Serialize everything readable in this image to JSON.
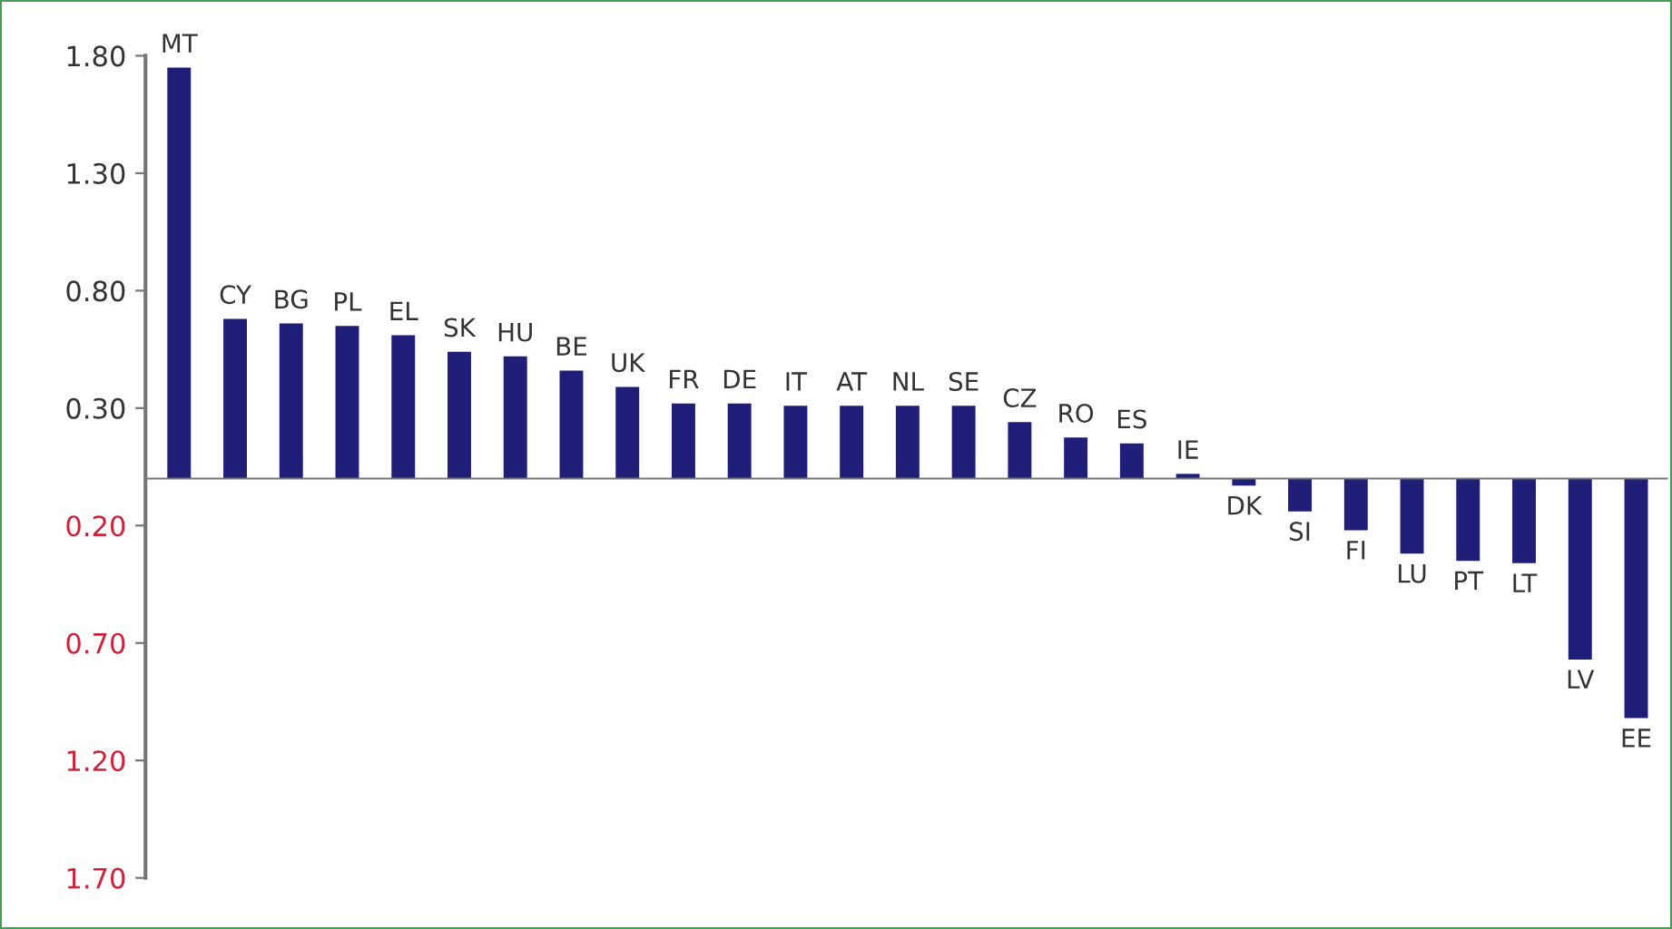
{
  "chart_data": {
    "type": "bar",
    "categories": [
      "MT",
      "CY",
      "BG",
      "PL",
      "EL",
      "SK",
      "HU",
      "BE",
      "UK",
      "FR",
      "DE",
      "IT",
      "AT",
      "NL",
      "SE",
      "CZ",
      "RO",
      "ES",
      "IE",
      "DK",
      "SI",
      "FI",
      "LU",
      "PT",
      "LT",
      "LV",
      "EE"
    ],
    "values": [
      1.75,
      0.68,
      0.66,
      0.65,
      0.61,
      0.54,
      0.52,
      0.46,
      0.39,
      0.32,
      0.32,
      0.31,
      0.31,
      0.31,
      0.31,
      0.24,
      0.175,
      0.15,
      0.02,
      -0.03,
      -0.14,
      -0.22,
      -0.32,
      -0.35,
      -0.36,
      -0.77,
      -1.02
    ],
    "color": "#1f1f7a",
    "ylim": [
      -1.7,
      1.8
    ],
    "yticks": [
      {
        "value": 1.8,
        "label": "1.80"
      },
      {
        "value": 1.3,
        "label": "1.30"
      },
      {
        "value": 0.8,
        "label": "0.80"
      },
      {
        "value": 0.3,
        "label": "0.30"
      },
      {
        "value": -0.2,
        "label": "0.20"
      },
      {
        "value": -0.7,
        "label": "0.70"
      },
      {
        "value": -1.2,
        "label": "1.20"
      },
      {
        "value": -1.7,
        "label": "1.70"
      }
    ],
    "grid": false
  }
}
